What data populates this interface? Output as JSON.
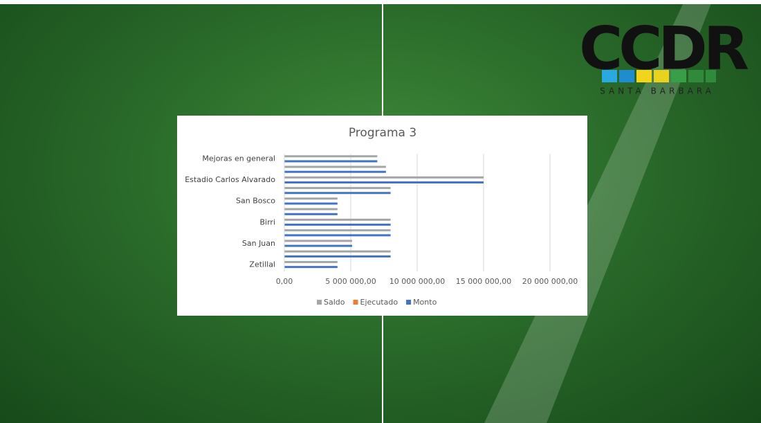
{
  "logo": {
    "title": "CCDR",
    "subtitle": "SANTA BARBARA"
  },
  "chart_data": {
    "type": "hbar",
    "title": "Programa 3",
    "categories": [
      "Mejoras en general",
      null,
      "Estadio Carlos Alvarado",
      null,
      "San Bosco",
      null,
      "Birri",
      null,
      "San Juan",
      null,
      "Zetillal"
    ],
    "series": [
      {
        "name": "Saldo",
        "color": "#a5a5a5",
        "values": [
          7000000,
          7650000,
          15000000,
          8000000,
          4000000,
          4000000,
          8000000,
          8000000,
          5100000,
          8000000,
          4000000
        ]
      },
      {
        "name": "Ejecutado",
        "color": "#ed7d31",
        "values": [
          0,
          0,
          0,
          0,
          0,
          0,
          0,
          0,
          0,
          0,
          0
        ]
      },
      {
        "name": "Monto",
        "color": "#4472c4",
        "values": [
          7000000,
          7650000,
          15000000,
          8000000,
          4000000,
          4000000,
          8000000,
          8000000,
          5100000,
          8000000,
          4000000
        ]
      }
    ],
    "xlim": [
      0,
      20000000
    ],
    "xticks": [
      {
        "value": 0,
        "label": "0,00"
      },
      {
        "value": 5000000,
        "label": "5 000 000,00"
      },
      {
        "value": 10000000,
        "label": "10 000 000,00"
      },
      {
        "value": 15000000,
        "label": "15 000 000,00"
      },
      {
        "value": 20000000,
        "label": "20 000 000,00"
      }
    ],
    "grid": true,
    "legend": "bottom"
  }
}
